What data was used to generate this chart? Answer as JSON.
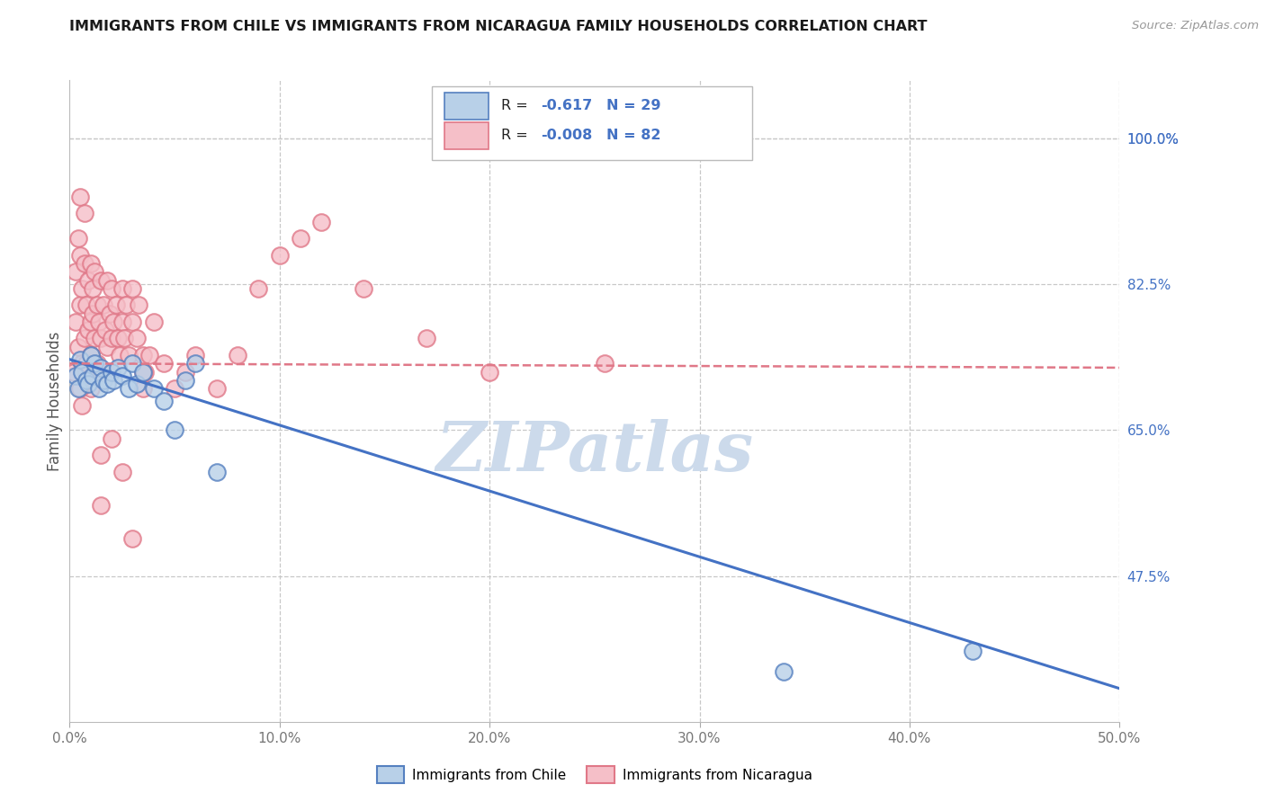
{
  "title": "IMMIGRANTS FROM CHILE VS IMMIGRANTS FROM NICARAGUA FAMILY HOUSEHOLDS CORRELATION CHART",
  "source": "Source: ZipAtlas.com",
  "ylabel": "Family Households",
  "x_min": 0.0,
  "x_max": 50.0,
  "y_min": 30.0,
  "y_max": 107.0,
  "right_yticks": [
    47.5,
    65.0,
    82.5,
    100.0
  ],
  "x_ticks": [
    0.0,
    10.0,
    20.0,
    30.0,
    40.0,
    50.0
  ],
  "grid_color": "#c8c8c8",
  "background_color": "#ffffff",
  "chile_face_color": "#b8d0e8",
  "chile_edge_color": "#5580c0",
  "nicaragua_face_color": "#f5bfc8",
  "nicaragua_edge_color": "#e07888",
  "chile_line_color": "#4472c4",
  "nicaragua_line_color": "#e07888",
  "legend_text_color": "#333333",
  "legend_value_color": "#4472c4",
  "watermark_color": "#ccdaeb",
  "chile_R": "-0.617",
  "chile_N": "29",
  "nicaragua_R": "-0.008",
  "nicaragua_N": "82",
  "chile_scatter_x": [
    0.3,
    0.4,
    0.5,
    0.6,
    0.8,
    0.9,
    1.0,
    1.1,
    1.2,
    1.4,
    1.5,
    1.6,
    1.8,
    2.0,
    2.1,
    2.3,
    2.5,
    2.8,
    3.0,
    3.2,
    3.5,
    4.0,
    4.5,
    5.0,
    5.5,
    6.0,
    7.0,
    34.0,
    43.0
  ],
  "chile_scatter_y": [
    71.5,
    70.0,
    73.5,
    72.0,
    71.0,
    70.5,
    74.0,
    71.5,
    73.0,
    70.0,
    72.5,
    71.0,
    70.5,
    72.0,
    71.0,
    72.5,
    71.5,
    70.0,
    73.0,
    70.5,
    72.0,
    70.0,
    68.5,
    65.0,
    71.0,
    73.0,
    60.0,
    36.0,
    38.5
  ],
  "nicaragua_scatter_x": [
    0.2,
    0.3,
    0.3,
    0.4,
    0.4,
    0.5,
    0.5,
    0.5,
    0.6,
    0.6,
    0.7,
    0.7,
    0.7,
    0.8,
    0.8,
    0.9,
    0.9,
    1.0,
    1.0,
    1.0,
    1.0,
    1.1,
    1.1,
    1.2,
    1.2,
    1.3,
    1.3,
    1.4,
    1.5,
    1.5,
    1.6,
    1.6,
    1.7,
    1.8,
    1.8,
    1.9,
    2.0,
    2.0,
    2.0,
    2.1,
    2.2,
    2.3,
    2.4,
    2.5,
    2.5,
    2.6,
    2.7,
    2.8,
    3.0,
    3.0,
    3.2,
    3.3,
    3.5,
    3.5,
    3.6,
    3.8,
    4.0,
    4.5,
    5.0,
    5.5,
    6.0,
    7.0,
    8.0,
    9.0,
    10.0,
    11.0,
    12.0,
    14.0,
    17.0,
    20.0,
    1.5,
    2.0,
    2.5,
    0.8,
    1.0,
    1.2,
    1.5,
    0.5,
    0.6,
    25.5,
    3.0,
    3.5
  ],
  "nicaragua_scatter_y": [
    72.0,
    78.0,
    84.0,
    75.0,
    88.0,
    80.0,
    86.0,
    93.0,
    82.0,
    73.0,
    85.0,
    76.0,
    91.0,
    80.0,
    72.0,
    83.0,
    77.0,
    85.0,
    78.0,
    74.0,
    70.0,
    82.0,
    79.0,
    84.0,
    76.0,
    80.0,
    73.0,
    78.0,
    83.0,
    76.0,
    80.0,
    72.0,
    77.0,
    83.0,
    75.0,
    79.0,
    82.0,
    76.0,
    72.0,
    78.0,
    80.0,
    76.0,
    74.0,
    82.0,
    78.0,
    76.0,
    80.0,
    74.0,
    82.0,
    78.0,
    76.0,
    80.0,
    74.0,
    70.0,
    72.0,
    74.0,
    78.0,
    73.0,
    70.0,
    72.0,
    74.0,
    70.0,
    74.0,
    82.0,
    86.0,
    88.0,
    90.0,
    82.0,
    76.0,
    72.0,
    62.0,
    64.0,
    60.0,
    73.0,
    74.0,
    72.0,
    56.0,
    70.0,
    68.0,
    73.0,
    52.0,
    72.0
  ],
  "chile_line_x0": 0.0,
  "chile_line_y0": 73.5,
  "chile_line_x1": 50.0,
  "chile_line_y1": 34.0,
  "nicaragua_line_x0": 0.0,
  "nicaragua_line_y0": 73.0,
  "nicaragua_line_x1": 50.0,
  "nicaragua_line_y1": 72.5
}
